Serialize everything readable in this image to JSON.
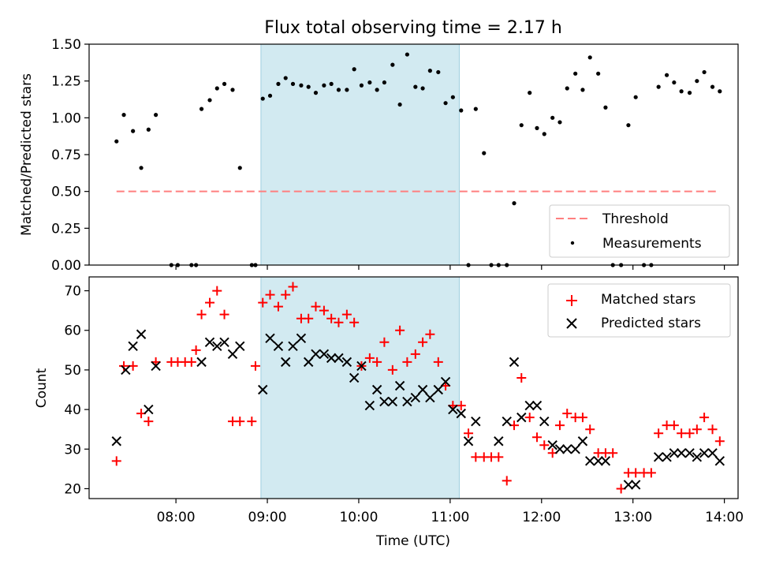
{
  "title": "Flux total observing time = 2.17 h",
  "colors": {
    "threshold": "#ff7f7f",
    "shade": "#add8e6",
    "matched": "#ff0000",
    "predicted": "#000000",
    "measurement": "#000000"
  },
  "chart_data": [
    {
      "type": "scatter",
      "title": "Flux total observing time = 2.17 h",
      "xlabel": "",
      "ylabel": "Matched/Predicted stars",
      "xlim": [
        7.05,
        14.15
      ],
      "ylim": [
        0,
        1.5
      ],
      "yticks": [
        0,
        0.25,
        0.5,
        0.75,
        1.0,
        1.25,
        1.5
      ],
      "ytick_labels": [
        "0.00",
        "0.25",
        "0.50",
        "0.75",
        "1.00",
        "1.25",
        "1.50"
      ],
      "xticks": [
        8,
        9,
        10,
        11,
        12,
        13,
        14
      ],
      "shaded_span": [
        8.93,
        11.1
      ],
      "legend_position": "lower right",
      "threshold": {
        "name": "Threshold",
        "value": 0.5,
        "x_range": [
          7.35,
          13.95
        ]
      },
      "series": [
        {
          "name": "Measurements",
          "x": [
            7.35,
            7.43,
            7.53,
            7.62,
            7.7,
            7.78,
            7.95,
            8.02,
            8.17,
            8.22,
            8.28,
            8.37,
            8.45,
            8.53,
            8.62,
            8.7,
            8.83,
            8.87,
            8.95,
            9.03,
            9.12,
            9.2,
            9.28,
            9.37,
            9.45,
            9.53,
            9.62,
            9.7,
            9.78,
            9.87,
            9.95,
            10.03,
            10.12,
            10.2,
            10.28,
            10.37,
            10.45,
            10.53,
            10.62,
            10.7,
            10.78,
            10.87,
            10.95,
            11.03,
            11.12,
            11.2,
            11.28,
            11.37,
            11.45,
            11.53,
            11.62,
            11.7,
            11.78,
            11.87,
            11.95,
            12.03,
            12.12,
            12.2,
            12.28,
            12.37,
            12.45,
            12.53,
            12.62,
            12.7,
            12.78,
            12.87,
            12.95,
            13.03,
            13.12,
            13.2,
            13.28,
            13.37,
            13.45,
            13.53,
            13.62,
            13.7,
            13.78,
            13.87,
            13.95
          ],
          "y": [
            0.84,
            1.02,
            0.91,
            0.66,
            0.92,
            1.02,
            0,
            0,
            0,
            0,
            1.06,
            1.12,
            1.2,
            1.23,
            1.19,
            0.66,
            0,
            0,
            1.13,
            1.15,
            1.23,
            1.27,
            1.23,
            1.22,
            1.21,
            1.17,
            1.22,
            1.23,
            1.19,
            1.19,
            1.33,
            1.22,
            1.24,
            1.19,
            1.24,
            1.36,
            1.09,
            1.43,
            1.21,
            1.2,
            1.32,
            1.31,
            1.1,
            1.14,
            1.05,
            0,
            1.06,
            0.76,
            0,
            0,
            0,
            0.42,
            0.95,
            1.17,
            0.93,
            0.89,
            1.0,
            0.97,
            1.2,
            1.3,
            1.19,
            1.41,
            1.3,
            1.07,
            0,
            0,
            0.95,
            1.14,
            0,
            0,
            1.21,
            1.29,
            1.24,
            1.18,
            1.17,
            1.25,
            1.31,
            1.21,
            1.18
          ]
        }
      ]
    },
    {
      "type": "scatter",
      "title": "",
      "xlabel": "Time (UTC)",
      "ylabel": "Count",
      "xlim": [
        7.05,
        14.15
      ],
      "ylim": [
        17.5,
        73.5
      ],
      "yticks": [
        20,
        30,
        40,
        50,
        60,
        70
      ],
      "ytick_labels": [
        "20",
        "30",
        "40",
        "50",
        "60",
        "70"
      ],
      "xticks": [
        8,
        9,
        10,
        11,
        12,
        13,
        14
      ],
      "xtick_labels": [
        "08:00",
        "09:00",
        "10:00",
        "11:00",
        "12:00",
        "13:00",
        "14:00"
      ],
      "shaded_span": [
        8.93,
        11.1
      ],
      "legend_position": "upper right",
      "series": [
        {
          "name": "Matched stars",
          "marker": "+",
          "x": [
            7.35,
            7.43,
            7.53,
            7.62,
            7.7,
            7.78,
            7.95,
            8.02,
            8.1,
            8.17,
            8.22,
            8.28,
            8.37,
            8.45,
            8.53,
            8.62,
            8.7,
            8.83,
            8.87,
            8.95,
            9.03,
            9.12,
            9.2,
            9.28,
            9.37,
            9.45,
            9.53,
            9.62,
            9.7,
            9.78,
            9.87,
            9.95,
            10.03,
            10.12,
            10.2,
            10.28,
            10.37,
            10.45,
            10.53,
            10.62,
            10.7,
            10.78,
            10.87,
            10.95,
            11.03,
            11.12,
            11.2,
            11.28,
            11.37,
            11.45,
            11.53,
            11.62,
            11.7,
            11.78,
            11.87,
            11.95,
            12.03,
            12.12,
            12.2,
            12.28,
            12.37,
            12.45,
            12.53,
            12.62,
            12.7,
            12.78,
            12.87,
            12.95,
            13.03,
            13.12,
            13.2,
            13.28,
            13.37,
            13.45,
            13.53,
            13.62,
            13.7,
            13.78,
            13.87,
            13.95
          ],
          "y": [
            27,
            51,
            51,
            39,
            37,
            52,
            52,
            52,
            52,
            52,
            55,
            64,
            67,
            70,
            64,
            37,
            37,
            37,
            51,
            67,
            69,
            66,
            69,
            71,
            63,
            63,
            66,
            65,
            63,
            62,
            64,
            62,
            51,
            53,
            52,
            57,
            50,
            60,
            52,
            54,
            57,
            59,
            52,
            46,
            41,
            41,
            34,
            28,
            28,
            28,
            28,
            22,
            36,
            48,
            38,
            33,
            31,
            29,
            36,
            39,
            38,
            38,
            35,
            29,
            29,
            29,
            20,
            24,
            24,
            24,
            24,
            34,
            36,
            36,
            34,
            34,
            35,
            38,
            35,
            32
          ]
        },
        {
          "name": "Predicted stars",
          "marker": "x",
          "x": [
            7.35,
            7.45,
            7.53,
            7.62,
            7.7,
            7.78,
            8.28,
            8.37,
            8.45,
            8.53,
            8.62,
            8.7,
            8.95,
            9.03,
            9.12,
            9.2,
            9.28,
            9.37,
            9.45,
            9.53,
            9.62,
            9.7,
            9.78,
            9.87,
            9.95,
            10.03,
            10.12,
            10.2,
            10.28,
            10.37,
            10.45,
            10.53,
            10.62,
            10.7,
            10.78,
            10.87,
            10.95,
            11.03,
            11.12,
            11.53,
            11.62,
            11.7,
            11.78,
            11.87,
            11.95,
            12.03,
            12.12,
            12.2,
            12.28,
            12.37,
            12.45,
            12.53,
            12.62,
            12.7,
            12.95,
            13.03,
            13.28,
            13.37,
            13.45,
            13.53,
            13.62,
            13.7,
            13.78,
            13.87,
            13.95,
            11.2,
            11.28
          ],
          "y": [
            32,
            50,
            56,
            59,
            40,
            51,
            52,
            57,
            56,
            57,
            54,
            56,
            45,
            58,
            56,
            52,
            56,
            58,
            52,
            54,
            54,
            53,
            53,
            52,
            48,
            51,
            41,
            45,
            42,
            42,
            46,
            42,
            43,
            45,
            43,
            45,
            47,
            40,
            39,
            32,
            37,
            52,
            38,
            41,
            41,
            37,
            31,
            30,
            30,
            30,
            32,
            27,
            27,
            27,
            21,
            21,
            28,
            28,
            29,
            29,
            29,
            28,
            29,
            29,
            27,
            32,
            37
          ]
        }
      ]
    }
  ]
}
